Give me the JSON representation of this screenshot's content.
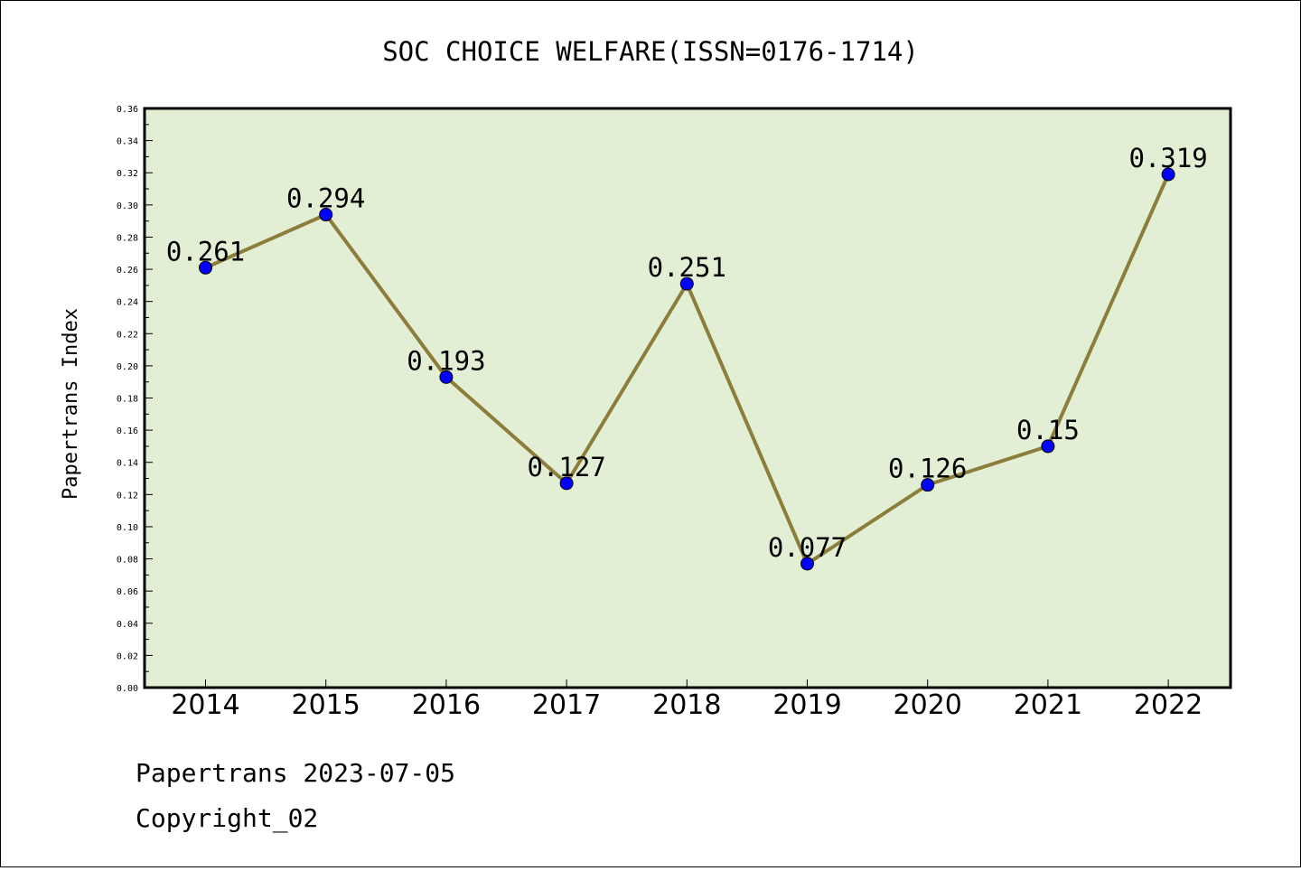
{
  "chart_data": {
    "type": "line",
    "title": "SOC CHOICE WELFARE(ISSN=0176-1714)",
    "xlabel": "",
    "ylabel": "Papertrans Index",
    "categories": [
      "2014",
      "2015",
      "2016",
      "2017",
      "2018",
      "2019",
      "2020",
      "2021",
      "2022"
    ],
    "values": [
      0.261,
      0.294,
      0.193,
      0.127,
      0.251,
      0.077,
      0.126,
      0.15,
      0.319
    ],
    "data_labels": [
      "0.261",
      "0.294",
      "0.193",
      "0.127",
      "0.251",
      "0.077",
      "0.126",
      "0.15",
      "0.319"
    ],
    "ylim": [
      0,
      0.36
    ],
    "yticks": [
      "0.00",
      "0.02",
      "0.04",
      "0.06",
      "0.08",
      "0.10",
      "0.12",
      "0.14",
      "0.16",
      "0.18",
      "0.20",
      "0.22",
      "0.24",
      "0.26",
      "0.28",
      "0.30",
      "0.32",
      "0.34",
      "0.36"
    ],
    "grid": false,
    "colors": {
      "plot_background": "#e2efd5",
      "line": "#8c7d3a",
      "marker": "#0000ff"
    }
  },
  "footer": {
    "line1": "Papertrans 2023-07-05",
    "line2": "Copyright_02"
  }
}
